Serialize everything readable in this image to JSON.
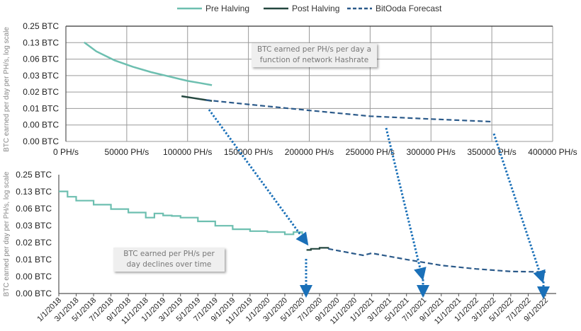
{
  "legend": [
    {
      "name": "Pre Halving",
      "color": "#6dbfb0",
      "style": "solid"
    },
    {
      "name": "Post Halving",
      "color": "#24473f",
      "style": "solid"
    },
    {
      "name": "BitOoda Forecast",
      "color": "#2b5a8a",
      "style": "dashed"
    }
  ],
  "colors": {
    "arrow": "#1a70b8",
    "grid": "#9a9a9a",
    "axis": "#666666"
  },
  "chart_data": [
    {
      "type": "line",
      "title": "",
      "xlabel": "",
      "ylabel": "BTC earned per day per PH/s, log scale",
      "xlim": [
        0,
        400000
      ],
      "x_ticks": [
        "0 PH/s",
        "50000 PH/s",
        "100000 PH/s",
        "150000 PH/s",
        "200000 PH/s",
        "250000 PH/s",
        "300000 PH/s",
        "350000 PH/s",
        "400000 PH/s"
      ],
      "y_ticks": [
        "0.25 BTC",
        "0.13 BTC",
        "0.06 BTC",
        "0.03 BTC",
        "0.02 BTC",
        "0.01 BTC",
        "0.00 BTC",
        "0.00 BTC"
      ],
      "grid": true,
      "annotation": "BTC earned per PH/s per day a function of network Hashrate",
      "series": [
        {
          "name": "Pre Halving",
          "x": [
            15000,
            25000,
            40000,
            55000,
            70000,
            85000,
            100000,
            110000,
            120000
          ],
          "y": [
            0.125,
            0.085,
            0.058,
            0.044,
            0.035,
            0.029,
            0.024,
            0.022,
            0.02
          ]
        },
        {
          "name": "Post Halving",
          "x": [
            95000,
            105000,
            115000,
            120000
          ],
          "y": [
            0.0125,
            0.0115,
            0.0106,
            0.0102
          ]
        },
        {
          "name": "BitOoda Forecast",
          "x": [
            115000,
            150000,
            200000,
            250000,
            300000,
            350000
          ],
          "y": [
            0.0106,
            0.0088,
            0.0068,
            0.0053,
            0.0047,
            0.0042
          ]
        }
      ]
    },
    {
      "type": "line",
      "title": "",
      "xlabel": "",
      "ylabel": "BTC earned per day per PH/s, log scale",
      "x_ticks": [
        "1/1/2018",
        "3/1/2018",
        "5/1/2018",
        "7/1/2018",
        "9/1/2018",
        "11/1/2018",
        "1/1/2019",
        "3/1/2019",
        "5/1/2019",
        "7/1/2019",
        "9/1/2019",
        "11/1/2019",
        "1/1/2020",
        "3/1/2020",
        "5/1/2020",
        "7/1/2020",
        "9/1/2020",
        "11/1/2020",
        "1/1/2021",
        "3/1/2021",
        "5/1/2021",
        "7/1/2021",
        "9/1/2021",
        "11/1/2021",
        "1/1/2022",
        "3/1/2022",
        "5/1/2022",
        "7/1/2022",
        "9/1/2022"
      ],
      "y_ticks": [
        "0.25 BTC",
        "0.13 BTC",
        "0.06 BTC",
        "0.03 BTC",
        "0.02 BTC",
        "0.01 BTC",
        "0.00 BTC",
        "0.00 BTC"
      ],
      "grid": false,
      "annotation": "BTC earned per PH/s per day declines over time",
      "series": [
        {
          "name": "Pre Halving",
          "x_month_index": [
            0,
            1,
            2,
            4,
            6,
            8,
            10,
            11,
            12,
            13,
            14,
            16,
            18,
            20,
            22,
            24,
            26,
            27,
            28
          ],
          "y": [
            0.125,
            0.1,
            0.085,
            0.072,
            0.06,
            0.052,
            0.042,
            0.05,
            0.046,
            0.045,
            0.042,
            0.036,
            0.03,
            0.026,
            0.024,
            0.023,
            0.021,
            0.023,
            0.021
          ]
        },
        {
          "name": "Post Halving",
          "x_month_index": [
            28.5,
            29,
            30,
            31
          ],
          "y": [
            0.011,
            0.0115,
            0.012,
            0.0115
          ]
        },
        {
          "name": "BitOoda Forecast",
          "x_month_index": [
            31,
            35,
            36,
            40,
            44,
            48,
            52,
            56
          ],
          "y": [
            0.0115,
            0.0088,
            0.0096,
            0.0074,
            0.0058,
            0.005,
            0.0045,
            0.0044
          ]
        }
      ]
    }
  ]
}
